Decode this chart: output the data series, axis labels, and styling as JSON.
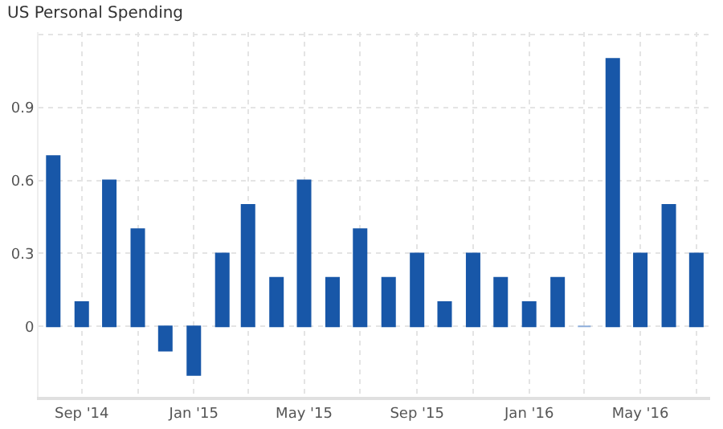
{
  "chart_data": {
    "type": "bar",
    "title": "US Personal Spending",
    "x": [
      "2014-08",
      "2014-09",
      "2014-10",
      "2014-11",
      "2014-12",
      "2015-01",
      "2015-02",
      "2015-03",
      "2015-04",
      "2015-05",
      "2015-06",
      "2015-07",
      "2015-08",
      "2015-09",
      "2015-10",
      "2015-11",
      "2015-12",
      "2016-01",
      "2016-02",
      "2016-03",
      "2016-04",
      "2016-05",
      "2016-06",
      "2016-07"
    ],
    "values": [
      0.7,
      0.1,
      0.6,
      0.4,
      -0.1,
      -0.2,
      0.3,
      0.5,
      0.2,
      0.6,
      0.2,
      0.4,
      0.2,
      0.3,
      0.1,
      0.3,
      0.2,
      0.1,
      0.2,
      0,
      1.1,
      0.3,
      0.5,
      0.3
    ],
    "colors": [
      "#1857a8",
      "#1857a8",
      "#1857a8",
      "#1857a8",
      "#1857a8",
      "#1857a8",
      "#1857a8",
      "#1857a8",
      "#1857a8",
      "#1857a8",
      "#1857a8",
      "#1857a8",
      "#1857a8",
      "#1857a8",
      "#1857a8",
      "#1857a8",
      "#1857a8",
      "#1857a8",
      "#1857a8",
      "#8eaedb",
      "#1857a8",
      "#1857a8",
      "#1857a8",
      "#1857a8"
    ],
    "xlim": [
      "2014-07-16",
      "2016-07-16"
    ],
    "xticks": [
      {
        "value": "2014-09",
        "label": "Sep '14"
      },
      {
        "value": "2014-11",
        "label": null
      },
      {
        "value": "2015-01",
        "label": "Jan '15"
      },
      {
        "value": "2015-03",
        "label": null
      },
      {
        "value": "2015-05",
        "label": "May '15"
      },
      {
        "value": "2015-07",
        "label": null
      },
      {
        "value": "2015-09",
        "label": "Sep '15"
      },
      {
        "value": "2015-11",
        "label": null
      },
      {
        "value": "2016-01",
        "label": "Jan '16"
      },
      {
        "value": "2016-03",
        "label": null
      },
      {
        "value": "2016-05",
        "label": "May '16"
      },
      {
        "value": "2016-07",
        "label": null
      }
    ],
    "ylim": [
      -0.29,
      1.21
    ],
    "yticks": [
      0,
      0.3,
      0.6,
      0.9,
      {
        "value": 1.2,
        "label": null
      }
    ],
    "grid": true
  }
}
